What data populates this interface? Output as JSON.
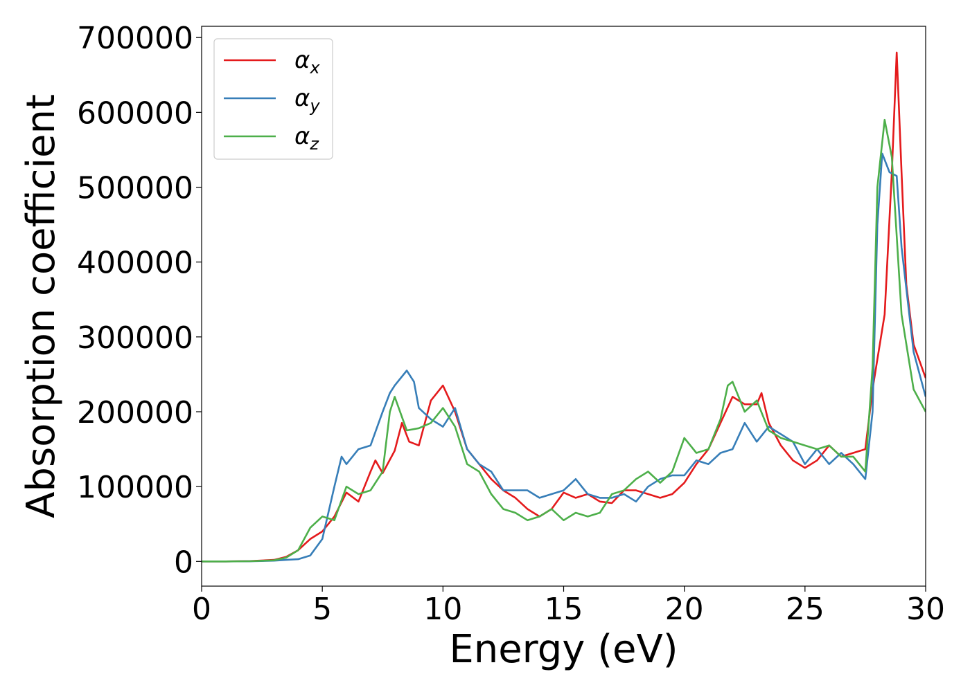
{
  "chart_data": {
    "type": "line",
    "title": "",
    "xlabel": "Energy (eV)",
    "ylabel": "Absorption coefficient",
    "xlim": [
      0,
      30
    ],
    "ylim": [
      -33000,
      715000
    ],
    "xticks": [
      0,
      5,
      10,
      15,
      20,
      25,
      30
    ],
    "yticks": [
      0,
      100000,
      200000,
      300000,
      400000,
      500000,
      600000,
      700000
    ],
    "grid": false,
    "legend_position": "top-left",
    "series": [
      {
        "name": "α_x",
        "greek": "α",
        "sub": "x",
        "color": "#e41a1c",
        "x": [
          0,
          1,
          2,
          3,
          3.5,
          4,
          4.5,
          5,
          5.5,
          6,
          6.5,
          7,
          7.2,
          7.5,
          8,
          8.3,
          8.6,
          9,
          9.5,
          10,
          10.5,
          11,
          11.5,
          12,
          12.5,
          13,
          13.5,
          14,
          14.5,
          15,
          15.5,
          16,
          16.5,
          17,
          17.5,
          18,
          18.5,
          19,
          19.5,
          20,
          20.5,
          21,
          21.5,
          22,
          22.5,
          23,
          23.2,
          23.5,
          24,
          24.5,
          25,
          25.5,
          26,
          26.5,
          27,
          27.5,
          27.8,
          28,
          28.3,
          28.6,
          28.8,
          29,
          29.2,
          29.5,
          30
        ],
        "values": [
          0,
          0,
          500,
          2000,
          6000,
          15000,
          30000,
          40000,
          60000,
          92000,
          80000,
          120000,
          135000,
          118000,
          148000,
          185000,
          160000,
          155000,
          215000,
          235000,
          200000,
          150000,
          130000,
          110000,
          95000,
          85000,
          70000,
          60000,
          70000,
          92000,
          85000,
          90000,
          80000,
          78000,
          95000,
          95000,
          90000,
          85000,
          90000,
          105000,
          130000,
          150000,
          185000,
          220000,
          210000,
          210000,
          225000,
          185000,
          155000,
          135000,
          125000,
          135000,
          155000,
          140000,
          145000,
          150000,
          230000,
          270000,
          330000,
          520000,
          680000,
          520000,
          370000,
          290000,
          245000
        ]
      },
      {
        "name": "α_y",
        "greek": "α",
        "sub": "y",
        "color": "#377eb8",
        "x": [
          0,
          1,
          2,
          3,
          3.5,
          4,
          4.5,
          5,
          5.5,
          5.8,
          6,
          6.5,
          7,
          7.5,
          7.8,
          8,
          8.5,
          8.8,
          9,
          9.5,
          10,
          10.5,
          11,
          11.5,
          12,
          12.5,
          13,
          13.5,
          14,
          14.5,
          15,
          15.5,
          16,
          16.5,
          17,
          17.5,
          18,
          18.5,
          19,
          19.5,
          20,
          20.5,
          21,
          21.5,
          22,
          22.5,
          23,
          23.5,
          24,
          24.5,
          25,
          25.5,
          26,
          26.5,
          27,
          27.5,
          27.8,
          28,
          28.2,
          28.5,
          28.8,
          29,
          29.5,
          30
        ],
        "values": [
          0,
          0,
          200,
          1000,
          2000,
          3000,
          8000,
          30000,
          100000,
          140000,
          130000,
          150000,
          155000,
          200000,
          225000,
          235000,
          255000,
          240000,
          205000,
          190000,
          180000,
          205000,
          150000,
          130000,
          120000,
          95000,
          95000,
          95000,
          85000,
          90000,
          95000,
          110000,
          90000,
          85000,
          85000,
          90000,
          80000,
          100000,
          110000,
          115000,
          115000,
          135000,
          130000,
          145000,
          150000,
          185000,
          160000,
          180000,
          170000,
          160000,
          130000,
          150000,
          130000,
          145000,
          130000,
          110000,
          200000,
          450000,
          545000,
          520000,
          515000,
          420000,
          280000,
          220000
        ]
      },
      {
        "name": "α_z",
        "greek": "α",
        "sub": "z",
        "color": "#4daf4a",
        "x": [
          0,
          1,
          2,
          3,
          3.5,
          4,
          4.5,
          5,
          5.5,
          6,
          6.5,
          7,
          7.5,
          7.8,
          8,
          8.5,
          9,
          9.5,
          10,
          10.5,
          11,
          11.5,
          12,
          12.5,
          13,
          13.5,
          14,
          14.5,
          15,
          15.5,
          16,
          16.5,
          17,
          17.5,
          18,
          18.5,
          19,
          19.5,
          20,
          20.5,
          21,
          21.5,
          21.8,
          22,
          22.5,
          23,
          23.5,
          24,
          24.5,
          25,
          25.5,
          26,
          26.5,
          27,
          27.5,
          27.8,
          28,
          28.3,
          28.6,
          29,
          29.5,
          30
        ],
        "values": [
          0,
          0,
          300,
          1500,
          5000,
          15000,
          45000,
          60000,
          55000,
          100000,
          90000,
          95000,
          120000,
          200000,
          220000,
          175000,
          178000,
          185000,
          205000,
          180000,
          130000,
          120000,
          90000,
          70000,
          65000,
          55000,
          60000,
          70000,
          55000,
          65000,
          60000,
          65000,
          90000,
          95000,
          110000,
          120000,
          105000,
          120000,
          165000,
          145000,
          150000,
          190000,
          235000,
          240000,
          200000,
          215000,
          175000,
          165000,
          160000,
          155000,
          150000,
          155000,
          140000,
          140000,
          120000,
          260000,
          500000,
          590000,
          540000,
          330000,
          230000,
          200000
        ]
      }
    ]
  }
}
